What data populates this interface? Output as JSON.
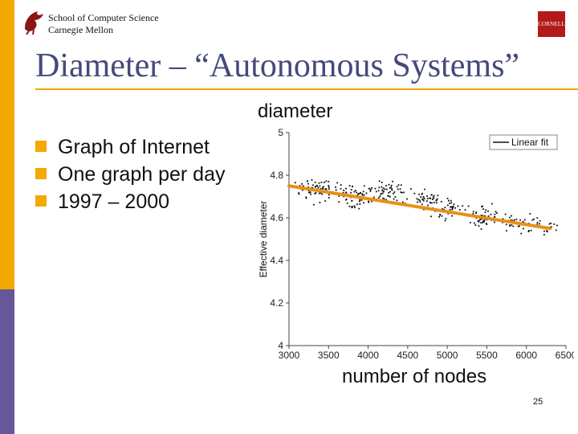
{
  "header": {
    "school_line1": "School of Computer Science",
    "school_line2": "Carnegie Mellon",
    "right_logo_text": "CORNELL"
  },
  "slide": {
    "title": "Diameter – “Autonomous Systems”",
    "bullets": [
      "Graph of Internet",
      "One graph per day",
      "1997 – 2000"
    ],
    "y_annotation": "diameter",
    "x_annotation": "number of nodes",
    "page_number": "25"
  },
  "colors": {
    "accent_gold": "#f2a900",
    "accent_purple": "#67579a",
    "title_blue": "#444a7a",
    "fit_line": "#e8901a"
  },
  "chart_data": {
    "type": "scatter",
    "title": "",
    "xlabel": "",
    "ylabel": "Effective diameter",
    "xlim": [
      3000,
      6500
    ],
    "ylim": [
      4,
      5
    ],
    "x_ticks": [
      "3000",
      "3500",
      "4000",
      "4500",
      "5000",
      "5500",
      "6000",
      "6500"
    ],
    "y_ticks": [
      "4",
      "4.2",
      "4.4",
      "4.6",
      "4.8",
      "5"
    ],
    "legend": {
      "position": "top-right",
      "entries": [
        "Linear fit"
      ]
    },
    "fit_line": {
      "name": "Linear fit",
      "x": [
        3000,
        6300
      ],
      "y": [
        4.75,
        4.55
      ]
    },
    "clusters": [
      {
        "x_center": 3350,
        "y_center": 4.73,
        "count": 70
      },
      {
        "x_center": 3850,
        "y_center": 4.7,
        "count": 60
      },
      {
        "x_center": 4250,
        "y_center": 4.72,
        "count": 55
      },
      {
        "x_center": 4700,
        "y_center": 4.68,
        "count": 50
      },
      {
        "x_center": 5050,
        "y_center": 4.64,
        "count": 45
      },
      {
        "x_center": 5450,
        "y_center": 4.6,
        "count": 55
      },
      {
        "x_center": 5900,
        "y_center": 4.58,
        "count": 40
      },
      {
        "x_center": 6250,
        "y_center": 4.56,
        "count": 20
      }
    ],
    "spread": {
      "x": 180,
      "y": 0.04
    }
  }
}
